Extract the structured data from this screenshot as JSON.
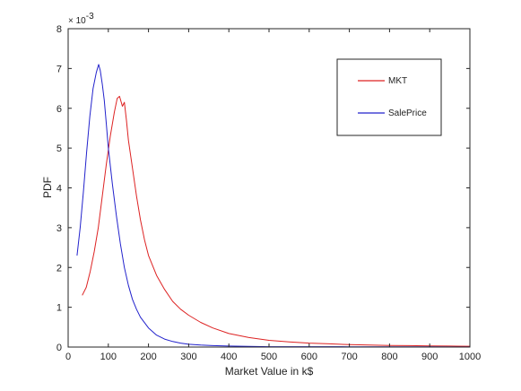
{
  "chart_data": {
    "type": "line",
    "title": "",
    "xlabel": "Market Value in k$",
    "ylabel": "PDF",
    "xlim": [
      0,
      1000
    ],
    "ylim": [
      0,
      8
    ],
    "x_ticks": [
      "0",
      "100",
      "200",
      "300",
      "400",
      "500",
      "600",
      "700",
      "800",
      "900",
      "1000"
    ],
    "y_ticks": [
      "0",
      "1",
      "2",
      "3",
      "4",
      "5",
      "6",
      "7",
      "8"
    ],
    "y_multiplier": "× 10",
    "y_exponent": "-3",
    "grid": false,
    "legend_position": "top-right",
    "series": [
      {
        "name": "MKT",
        "color": "#dd2222",
        "x": [
          35,
          45,
          55,
          65,
          75,
          85,
          95,
          105,
          115,
          122,
          128,
          135,
          140,
          145,
          150,
          160,
          170,
          180,
          190,
          200,
          220,
          240,
          260,
          280,
          300,
          330,
          360,
          400,
          450,
          500,
          550,
          600,
          650,
          700,
          750,
          800,
          850,
          900,
          950,
          1000
        ],
        "y": [
          1.3,
          1.5,
          1.9,
          2.4,
          3.0,
          3.8,
          4.6,
          5.3,
          5.9,
          6.25,
          6.3,
          6.05,
          6.15,
          5.7,
          5.2,
          4.5,
          3.8,
          3.2,
          2.7,
          2.3,
          1.8,
          1.45,
          1.15,
          0.95,
          0.8,
          0.62,
          0.48,
          0.34,
          0.24,
          0.17,
          0.13,
          0.1,
          0.08,
          0.06,
          0.05,
          0.04,
          0.035,
          0.03,
          0.025,
          0.02
        ]
      },
      {
        "name": "SalePrice",
        "color": "#2222cc",
        "x": [
          22,
          30,
          38,
          46,
          54,
          62,
          70,
          76,
          80,
          85,
          90,
          95,
          100,
          110,
          120,
          130,
          140,
          150,
          160,
          170,
          180,
          200,
          220,
          240,
          260,
          280,
          300,
          330,
          360,
          400,
          450,
          500,
          600,
          700,
          800,
          900,
          1000
        ],
        "y": [
          2.3,
          3.0,
          3.9,
          4.9,
          5.8,
          6.5,
          6.9,
          7.1,
          6.95,
          6.6,
          6.2,
          5.6,
          5.0,
          4.1,
          3.3,
          2.6,
          2.0,
          1.55,
          1.2,
          0.95,
          0.75,
          0.48,
          0.3,
          0.2,
          0.14,
          0.1,
          0.07,
          0.05,
          0.035,
          0.025,
          0.015,
          0.01,
          0.008,
          0.006,
          0.005,
          0.004,
          0.003
        ]
      }
    ]
  }
}
